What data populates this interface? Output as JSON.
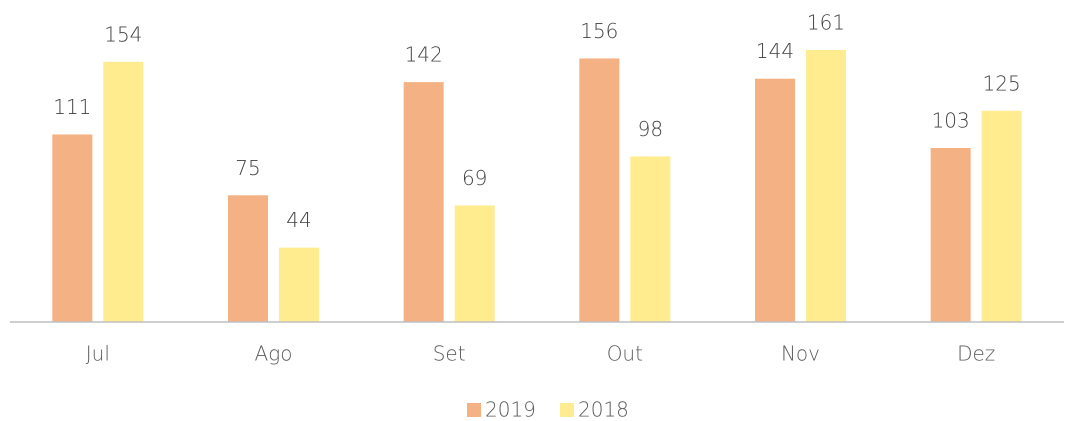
{
  "chart_data": {
    "type": "bar",
    "categories": [
      "Jul",
      "Ago",
      "Set",
      "Out",
      "Nov",
      "Dez"
    ],
    "series": [
      {
        "name": "2019",
        "color": "#f4b183",
        "values": [
          111,
          75,
          142,
          156,
          144,
          103
        ]
      },
      {
        "name": "2018",
        "color": "#ffec8e",
        "values": [
          154,
          44,
          69,
          98,
          161,
          125
        ]
      }
    ],
    "legend": "bottom"
  }
}
